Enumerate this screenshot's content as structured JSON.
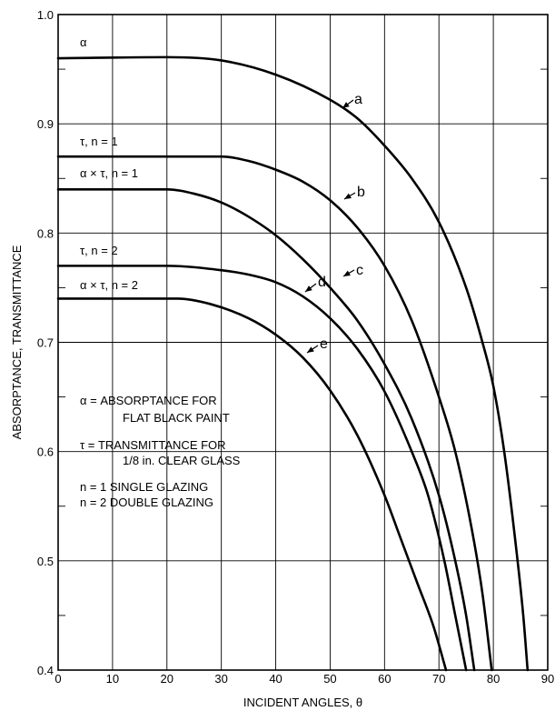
{
  "chart_data": {
    "type": "line",
    "xlabel": "INCIDENT ANGLES, θ",
    "ylabel": "ABSORPTANCE, TRANSMITTANCE",
    "xlim": [
      0,
      90
    ],
    "ylim": [
      0.4,
      1.0
    ],
    "x_ticks": [
      "0",
      "10",
      "20",
      "30",
      "40",
      "50",
      "60",
      "70",
      "80",
      "90"
    ],
    "y_ticks": [
      "0.4",
      "0.5",
      "0.6",
      "0.7",
      "0.8",
      "0.9",
      "1.0"
    ],
    "grid": true,
    "series": [
      {
        "name": "a",
        "curve_label": "α",
        "points": [
          [
            0,
            0.96
          ],
          [
            20,
            0.961
          ],
          [
            30,
            0.958
          ],
          [
            40,
            0.945
          ],
          [
            50,
            0.922
          ],
          [
            55,
            0.905
          ],
          [
            60,
            0.88
          ],
          [
            65,
            0.85
          ],
          [
            70,
            0.81
          ],
          [
            75,
            0.75
          ],
          [
            78,
            0.7
          ],
          [
            80,
            0.66
          ],
          [
            82,
            0.6
          ],
          [
            84,
            0.52
          ],
          [
            85.5,
            0.45
          ],
          [
            86.3,
            0.4
          ]
        ]
      },
      {
        "name": "b",
        "curve_label": "τ, n = 1",
        "points": [
          [
            0,
            0.87
          ],
          [
            30,
            0.87
          ],
          [
            35,
            0.866
          ],
          [
            40,
            0.858
          ],
          [
            45,
            0.847
          ],
          [
            50,
            0.83
          ],
          [
            55,
            0.805
          ],
          [
            60,
            0.77
          ],
          [
            65,
            0.72
          ],
          [
            70,
            0.65
          ],
          [
            73,
            0.6
          ],
          [
            76,
            0.53
          ],
          [
            78,
            0.47
          ],
          [
            79.7,
            0.4
          ]
        ]
      },
      {
        "name": "c",
        "curve_label": "α × τ, n = 1",
        "points": [
          [
            0,
            0.84
          ],
          [
            20,
            0.84
          ],
          [
            25,
            0.836
          ],
          [
            30,
            0.828
          ],
          [
            35,
            0.815
          ],
          [
            40,
            0.798
          ],
          [
            45,
            0.776
          ],
          [
            50,
            0.75
          ],
          [
            55,
            0.72
          ],
          [
            60,
            0.68
          ],
          [
            65,
            0.63
          ],
          [
            70,
            0.56
          ],
          [
            73,
            0.5
          ],
          [
            75,
            0.45
          ],
          [
            76.5,
            0.4
          ]
        ]
      },
      {
        "name": "d",
        "curve_label": "τ, n = 2",
        "points": [
          [
            0,
            0.77
          ],
          [
            20,
            0.77
          ],
          [
            30,
            0.766
          ],
          [
            35,
            0.762
          ],
          [
            40,
            0.755
          ],
          [
            45,
            0.742
          ],
          [
            50,
            0.722
          ],
          [
            55,
            0.694
          ],
          [
            60,
            0.655
          ],
          [
            65,
            0.6
          ],
          [
            68,
            0.56
          ],
          [
            71,
            0.5
          ],
          [
            73,
            0.45
          ],
          [
            75,
            0.4
          ]
        ]
      },
      {
        "name": "e",
        "curve_label": "α × τ, n = 2",
        "points": [
          [
            0,
            0.74
          ],
          [
            22,
            0.74
          ],
          [
            28,
            0.735
          ],
          [
            35,
            0.722
          ],
          [
            40,
            0.707
          ],
          [
            45,
            0.686
          ],
          [
            50,
            0.656
          ],
          [
            55,
            0.615
          ],
          [
            60,
            0.56
          ],
          [
            63,
            0.52
          ],
          [
            66,
            0.48
          ],
          [
            69,
            0.44
          ],
          [
            71.3,
            0.4
          ]
        ]
      }
    ],
    "legend": [
      {
        "line1": "α =  ABSORPTANCE FOR",
        "line2": "FLAT BLACK PAINT"
      },
      {
        "line1": "τ = TRANSMITTANCE FOR",
        "line2": "1/8 in. CLEAR GLASS"
      },
      {
        "line1": "n = 1 SINGLE GLAZING",
        "line2": "n = 2 DOUBLE GLAZING"
      }
    ]
  }
}
